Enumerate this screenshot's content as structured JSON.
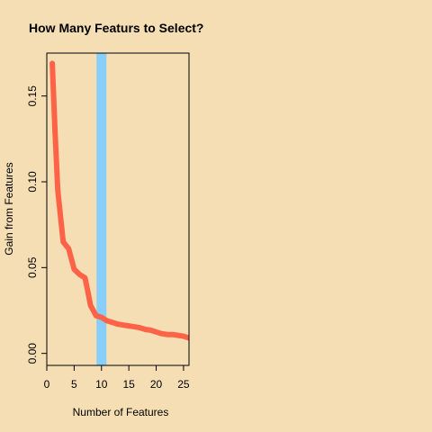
{
  "chart_data": {
    "type": "line",
    "title": "How Many Featurs to Select?",
    "xlabel": "Number of Features",
    "ylabel": "Gain from Features",
    "xlim": [
      0,
      26
    ],
    "ylim": [
      -0.007,
      0.175
    ],
    "x_ticks": [
      0,
      5,
      10,
      15,
      20,
      25
    ],
    "y_ticks": [
      0.0,
      0.05,
      0.1,
      0.15
    ],
    "y_tick_labels": [
      "0.00",
      "0.05",
      "0.10",
      "0.15"
    ],
    "grid": false,
    "colors": {
      "background": "#F5DEB3",
      "line": "#FF6347",
      "vline": "#87CEFA"
    },
    "vline_x": 10,
    "series": [
      {
        "x": [
          1,
          1.5,
          2,
          2.5,
          3,
          4,
          5,
          6,
          7,
          7.5,
          8,
          9,
          10,
          11,
          12,
          13,
          14,
          15,
          16,
          17,
          18,
          19,
          20,
          21,
          22,
          23,
          24,
          25,
          26
        ],
        "values": [
          0.169,
          0.13,
          0.095,
          0.08,
          0.065,
          0.061,
          0.049,
          0.046,
          0.044,
          0.036,
          0.028,
          0.022,
          0.021,
          0.019,
          0.018,
          0.017,
          0.0165,
          0.016,
          0.0155,
          0.015,
          0.014,
          0.0135,
          0.0125,
          0.0115,
          0.011,
          0.011,
          0.0105,
          0.01,
          0.009
        ]
      }
    ]
  }
}
